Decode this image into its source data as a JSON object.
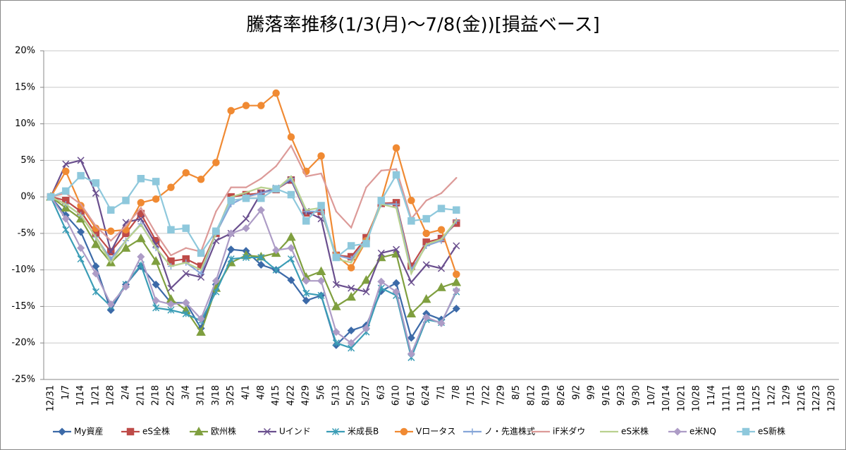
{
  "chart_data": {
    "type": "line",
    "title": "騰落率推移(1/3(月)〜7/8(金))[損益ベース]",
    "categories": [
      "12/31",
      "1/7",
      "1/14",
      "1/21",
      "1/28",
      "2/4",
      "2/11",
      "2/18",
      "2/25",
      "3/4",
      "3/11",
      "3/18",
      "3/25",
      "4/1",
      "4/8",
      "4/15",
      "4/22",
      "4/29",
      "5/6",
      "5/13",
      "5/20",
      "5/27",
      "6/3",
      "6/10",
      "6/17",
      "6/24",
      "7/1",
      "7/8",
      "7/15",
      "7/22",
      "7/29",
      "8/5",
      "8/12",
      "8/19",
      "8/26",
      "9/2",
      "9/9",
      "9/16",
      "9/23",
      "9/30",
      "10/7",
      "10/14",
      "10/21",
      "10/28",
      "11/4",
      "11/11",
      "11/18",
      "11/25",
      "12/2",
      "12/9",
      "12/16",
      "12/23",
      "12/30"
    ],
    "ylim": [
      -25,
      20
    ],
    "yticks": [
      {
        "value": -25,
        "label": "-25%"
      },
      {
        "value": -20,
        "label": "-20%"
      },
      {
        "value": -15,
        "label": "-15%"
      },
      {
        "value": -10,
        "label": "-10%"
      },
      {
        "value": -5,
        "label": "-5%"
      },
      {
        "value": 0,
        "label": "0%"
      },
      {
        "value": 5,
        "label": "5%"
      },
      {
        "value": 10,
        "label": "10%"
      },
      {
        "value": 15,
        "label": "15%"
      },
      {
        "value": 20,
        "label": "20%"
      }
    ],
    "grid": true,
    "legend": "bottom",
    "series": [
      {
        "name": "My資産",
        "color": "#3c6aa8",
        "marker": "diamond",
        "values": [
          0,
          -2.5,
          -4.8,
          -9.5,
          -15.5,
          -12,
          -9.5,
          -12,
          -14.5,
          -14.5,
          -18,
          -12,
          -7.2,
          -7.4,
          -9.3,
          -10,
          -11.4,
          -14.2,
          -13.5,
          -20.3,
          -18.3,
          -17.6,
          -12.9,
          -11.8,
          -19.3,
          -16,
          -16.8,
          -15.3,
          null,
          null,
          null,
          null,
          null,
          null,
          null,
          null,
          null,
          null,
          null,
          null,
          null,
          null,
          null,
          null,
          null,
          null,
          null,
          null,
          null,
          null,
          null,
          null,
          null
        ]
      },
      {
        "name": "eS全株",
        "color": "#be4b48",
        "marker": "square",
        "values": [
          0,
          -0.5,
          -2,
          -5,
          -7.5,
          -5,
          -2.3,
          -6,
          -8.8,
          -8.5,
          -9.5,
          -5,
          0,
          0.3,
          0.5,
          1,
          2.3,
          -2.2,
          -2,
          -8,
          -8.2,
          -5.6,
          -0.9,
          -0.8,
          -9.5,
          -6.2,
          -5.7,
          -3.6,
          null,
          null,
          null,
          null,
          null,
          null,
          null,
          null,
          null,
          null,
          null,
          null,
          null,
          null,
          null,
          null,
          null,
          null,
          null,
          null,
          null,
          null,
          null,
          null,
          null
        ]
      },
      {
        "name": "欧州株",
        "color": "#7f9f3f",
        "marker": "triangle",
        "values": [
          0,
          -1.5,
          -3,
          -6.5,
          -9,
          -7,
          -5.7,
          -8.8,
          -14,
          -15.5,
          -18.5,
          -12.5,
          -9,
          -8,
          -8.2,
          -7.7,
          -5.5,
          -11,
          -10.2,
          -15,
          -13.7,
          -11.4,
          -8.3,
          -7.8,
          -16,
          -14,
          -12.4,
          -11.7,
          null,
          null,
          null,
          null,
          null,
          null,
          null,
          null,
          null,
          null,
          null,
          null,
          null,
          null,
          null,
          null,
          null,
          null,
          null,
          null,
          null,
          null,
          null,
          null,
          null
        ]
      },
      {
        "name": "Uインド",
        "color": "#6a4f8e",
        "marker": "x",
        "values": [
          0,
          4.5,
          5,
          0.5,
          -7.5,
          -3.5,
          -3,
          -6.5,
          -12.5,
          -10.5,
          -11,
          -6,
          -5,
          -3,
          0.5,
          1.2,
          2.3,
          -2,
          -3,
          -12,
          -12.5,
          -13,
          -7.7,
          -7.2,
          -11.7,
          -9.3,
          -9.8,
          -6.7,
          null,
          null,
          null,
          null,
          null,
          null,
          null,
          null,
          null,
          null,
          null,
          null,
          null,
          null,
          null,
          null,
          null,
          null,
          null,
          null,
          null,
          null,
          null,
          null,
          null
        ]
      },
      {
        "name": "米成長B",
        "color": "#3b9db6",
        "marker": "star",
        "values": [
          0,
          -4.5,
          -8.5,
          -13,
          -15,
          -12,
          -9.3,
          -15.2,
          -15.5,
          -16,
          -17,
          -13,
          -8.5,
          -8.3,
          -8.3,
          -10,
          -8.5,
          -13.2,
          -13.5,
          -20,
          -20.7,
          -18.5,
          -12.5,
          -13.5,
          -22,
          -16.8,
          -17.2,
          -13,
          null,
          null,
          null,
          null,
          null,
          null,
          null,
          null,
          null,
          null,
          null,
          null,
          null,
          null,
          null,
          null,
          null,
          null,
          null,
          null,
          null,
          null,
          null,
          null,
          null
        ]
      },
      {
        "name": "Vロータス",
        "color": "#f08a33",
        "marker": "circle",
        "values": [
          0,
          3.5,
          -1.2,
          -4.3,
          -4.7,
          -4.5,
          -0.8,
          -0.3,
          1.3,
          3.3,
          2.4,
          4.7,
          11.8,
          12.5,
          12.5,
          14.2,
          8.2,
          3.5,
          5.6,
          -8,
          -9.7,
          -6,
          -0.5,
          6.7,
          -0.5,
          -5,
          -4.5,
          -10.6,
          null,
          null,
          null,
          null,
          null,
          null,
          null,
          null,
          null,
          null,
          null,
          null,
          null,
          null,
          null,
          null,
          null,
          null,
          null,
          null,
          null,
          null,
          null,
          null,
          null
        ]
      },
      {
        "name": "ノ・先進株式",
        "color": "#86a6d8",
        "marker": "plus",
        "values": [
          0,
          -1,
          -2.5,
          -5.5,
          -8.5,
          -6,
          -3.7,
          -7,
          -9.5,
          -9,
          -10.5,
          -5,
          -1,
          0,
          0.5,
          1,
          2.5,
          -2,
          -2,
          -8,
          -8.5,
          -6,
          -1,
          -1,
          -10,
          -6.7,
          -6,
          -3.3,
          null,
          null,
          null,
          null,
          null,
          null,
          null,
          null,
          null,
          null,
          null,
          null,
          null,
          null,
          null,
          null,
          null,
          null,
          null,
          null,
          null,
          null,
          null,
          null,
          null
        ]
      },
      {
        "name": "iF米ダウ",
        "color": "#dc9a98",
        "marker": "none",
        "values": [
          0,
          0.5,
          -1,
          -4,
          -6,
          -4,
          -1.5,
          -5,
          -8,
          -7,
          -7.5,
          -2,
          1.3,
          1.3,
          2.5,
          4.2,
          7,
          2.8,
          3.2,
          -2,
          -4.2,
          1.3,
          3.6,
          3.8,
          -3,
          -0.5,
          0.5,
          2.6,
          null,
          null,
          null,
          null,
          null,
          null,
          null,
          null,
          null,
          null,
          null,
          null,
          null,
          null,
          null,
          null,
          null,
          null,
          null,
          null,
          null,
          null,
          null,
          null,
          null
        ]
      },
      {
        "name": "eS米株",
        "color": "#b9d18f",
        "marker": "none",
        "values": [
          0,
          -1,
          -2.5,
          -5.5,
          -9,
          -6,
          -3.8,
          -7,
          -9.5,
          -9,
          -10,
          -5,
          0,
          0.6,
          1.3,
          1,
          2.8,
          -1.8,
          -1.5,
          -8.5,
          -9,
          -6,
          -1,
          -1.5,
          -10.5,
          -6.5,
          -5.8,
          -3.2,
          null,
          null,
          null,
          null,
          null,
          null,
          null,
          null,
          null,
          null,
          null,
          null,
          null,
          null,
          null,
          null,
          null,
          null,
          null,
          null,
          null,
          null,
          null,
          null,
          null
        ]
      },
      {
        "name": "e米NQ",
        "color": "#ad9cc6",
        "marker": "diamond",
        "values": [
          0,
          -3,
          -7,
          -10.5,
          -14.7,
          -12.3,
          -8.2,
          -14.2,
          -14.7,
          -14.5,
          -16.7,
          -11.5,
          -5,
          -4.3,
          -1.8,
          -7.3,
          -7,
          -11.5,
          -11.5,
          -18.5,
          -20,
          -18,
          -11.6,
          -13,
          -21.5,
          -16.5,
          -17.3,
          -12.8,
          null,
          null,
          null,
          null,
          null,
          null,
          null,
          null,
          null,
          null,
          null,
          null,
          null,
          null,
          null,
          null,
          null,
          null,
          null,
          null,
          null,
          null,
          null,
          null,
          null
        ]
      },
      {
        "name": "eS新株",
        "color": "#8ec8dc",
        "marker": "square",
        "values": [
          0,
          0.8,
          2.9,
          1.9,
          -1.8,
          -0.5,
          2.5,
          2.1,
          -4.5,
          -4.3,
          -7.7,
          -4.7,
          -0.5,
          -0.2,
          -0.2,
          1.1,
          0.3,
          -3.3,
          -1.2,
          -8.3,
          -6.7,
          -6.4,
          -0.5,
          3,
          -3.3,
          -3,
          -1.6,
          -1.8,
          null,
          null,
          null,
          null,
          null,
          null,
          null,
          null,
          null,
          null,
          null,
          null,
          null,
          null,
          null,
          null,
          null,
          null,
          null,
          null,
          null,
          null,
          null,
          null,
          null
        ]
      }
    ]
  }
}
